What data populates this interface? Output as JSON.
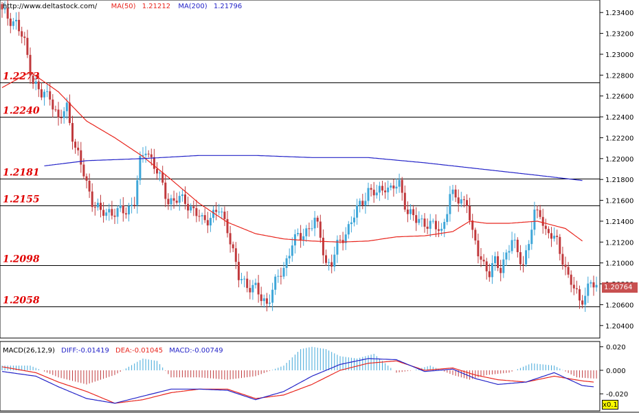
{
  "header": {
    "url": "http://www.deltastock.com/",
    "ma50_label": "MA(50)",
    "ma50_value": "1.21212",
    "ma200_label": "MA(200)",
    "ma200_value": "1.21796"
  },
  "macd_header": {
    "title": "MACD(26,12,9)",
    "diff": "DIFF:-0.01419",
    "dea": "DEA:-0.01045",
    "macd": "MACD:-0.00749"
  },
  "colors": {
    "up": "#3ea6d8",
    "down": "#c0393c",
    "ma50": "#e8241c",
    "ma200": "#2323c8",
    "level_text": "#e00000",
    "price_tag": "#c85050",
    "zoom_tag": "#ffff00"
  },
  "zoom_label": "x0.1",
  "chart_data": [
    {
      "type": "candlestick",
      "title": "",
      "ylim": [
        1.2028,
        1.2352
      ],
      "y_ticks": [
        "1.23400",
        "1.23200",
        "1.23000",
        "1.22800",
        "1.22600",
        "1.22400",
        "1.22200",
        "1.22000",
        "1.21800",
        "1.21600",
        "1.21400",
        "1.21200",
        "1.21000",
        "1.20800",
        "1.20600",
        "1.20400"
      ],
      "current_price": "1.20764",
      "levels": [
        {
          "label": "1.2273",
          "value": 1.2273
        },
        {
          "label": "1.2240",
          "value": 1.224
        },
        {
          "label": "1.2181",
          "value": 1.2181
        },
        {
          "label": "1.2155",
          "value": 1.2155
        },
        {
          "label": "1.2098",
          "value": 1.2098
        },
        {
          "label": "1.2058",
          "value": 1.2058
        }
      ],
      "series_anchor_closes": [
        [
          0,
          1.234
        ],
        [
          5,
          1.233
        ],
        [
          8,
          1.231
        ],
        [
          11,
          1.2275
        ],
        [
          14,
          1.226
        ],
        [
          17,
          1.2262
        ],
        [
          20,
          1.2235
        ],
        [
          23,
          1.225
        ],
        [
          26,
          1.221
        ],
        [
          29,
          1.2185
        ],
        [
          32,
          1.216
        ],
        [
          35,
          1.2147
        ],
        [
          38,
          1.215
        ],
        [
          41,
          1.2148
        ],
        [
          44,
          1.215
        ],
        [
          47,
          1.216
        ],
        [
          49,
          1.2195
        ],
        [
          51,
          1.221
        ],
        [
          53,
          1.22
        ],
        [
          56,
          1.218
        ],
        [
          59,
          1.216
        ],
        [
          62,
          1.216
        ],
        [
          65,
          1.216
        ],
        [
          68,
          1.215
        ],
        [
          71,
          1.214
        ],
        [
          74,
          1.2145
        ],
        [
          77,
          1.215
        ],
        [
          80,
          1.2135
        ],
        [
          82,
          1.211
        ],
        [
          84,
          1.2085
        ],
        [
          87,
          1.208
        ],
        [
          90,
          1.2075
        ],
        [
          92,
          1.2065
        ],
        [
          94,
          1.2062
        ],
        [
          96,
          1.2075
        ],
        [
          98,
          1.2085
        ],
        [
          100,
          1.2095
        ],
        [
          103,
          1.212
        ],
        [
          106,
          1.2125
        ],
        [
          109,
          1.2135
        ],
        [
          111,
          1.214
        ],
        [
          113,
          1.2125
        ],
        [
          115,
          1.21
        ],
        [
          117,
          1.21
        ],
        [
          119,
          1.2115
        ],
        [
          121,
          1.2125
        ],
        [
          124,
          1.214
        ],
        [
          127,
          1.2155
        ],
        [
          130,
          1.217
        ],
        [
          133,
          1.2165
        ],
        [
          136,
          1.2175
        ],
        [
          138,
          1.217
        ],
        [
          141,
          1.2175
        ],
        [
          144,
          1.215
        ],
        [
          147,
          1.214
        ],
        [
          150,
          1.214
        ],
        [
          153,
          1.2135
        ],
        [
          156,
          1.213
        ],
        [
          159,
          1.2165
        ],
        [
          162,
          1.216
        ],
        [
          165,
          1.216
        ],
        [
          167,
          1.2125
        ],
        [
          169,
          1.211
        ],
        [
          171,
          1.21
        ],
        [
          173,
          1.209
        ],
        [
          175,
          1.21
        ],
        [
          177,
          1.2095
        ],
        [
          179,
          1.211
        ],
        [
          181,
          1.212
        ],
        [
          183,
          1.211
        ],
        [
          185,
          1.21
        ],
        [
          187,
          1.212
        ],
        [
          189,
          1.2145
        ],
        [
          191,
          1.215
        ],
        [
          193,
          1.213
        ],
        [
          195,
          1.2125
        ],
        [
          197,
          1.212
        ],
        [
          199,
          1.2105
        ],
        [
          201,
          1.2085
        ],
        [
          203,
          1.2075
        ],
        [
          205,
          1.2065
        ],
        [
          207,
          1.207
        ],
        [
          209,
          1.208
        ],
        [
          211,
          1.2076
        ]
      ],
      "ma50_anchors": [
        [
          0,
          1.2268
        ],
        [
          10,
          1.2283
        ],
        [
          20,
          1.2264
        ],
        [
          30,
          1.2236
        ],
        [
          40,
          1.222
        ],
        [
          50,
          1.2202
        ],
        [
          60,
          1.218
        ],
        [
          70,
          1.2157
        ],
        [
          80,
          1.2139
        ],
        [
          90,
          1.2128
        ],
        [
          100,
          1.2123
        ],
        [
          110,
          1.2121
        ],
        [
          120,
          1.212
        ],
        [
          130,
          1.2121
        ],
        [
          140,
          1.2125
        ],
        [
          150,
          1.2126
        ],
        [
          160,
          1.213
        ],
        [
          166,
          1.214
        ],
        [
          172,
          1.2138
        ],
        [
          180,
          1.2138
        ],
        [
          190,
          1.214
        ],
        [
          200,
          1.2133
        ],
        [
          206,
          1.2121
        ]
      ],
      "ma200_anchors": [
        [
          15,
          1.2193
        ],
        [
          30,
          1.2198
        ],
        [
          50,
          1.22
        ],
        [
          70,
          1.2203
        ],
        [
          90,
          1.2203
        ],
        [
          110,
          1.2201
        ],
        [
          130,
          1.2201
        ],
        [
          150,
          1.2196
        ],
        [
          170,
          1.219
        ],
        [
          190,
          1.2184
        ],
        [
          206,
          1.2179
        ]
      ]
    },
    {
      "type": "macd",
      "params": "26,12,9",
      "ylim": [
        -0.0345,
        0.0245
      ],
      "y_ticks": [
        "0.020",
        "0.000",
        "-0.020"
      ],
      "diff_anchors": [
        [
          0,
          -0.001
        ],
        [
          12,
          -0.005
        ],
        [
          20,
          -0.014
        ],
        [
          30,
          -0.024
        ],
        [
          40,
          -0.028
        ],
        [
          50,
          -0.022
        ],
        [
          60,
          -0.016
        ],
        [
          70,
          -0.016
        ],
        [
          80,
          -0.017
        ],
        [
          90,
          -0.025
        ],
        [
          100,
          -0.018
        ],
        [
          110,
          -0.005
        ],
        [
          120,
          0.005
        ],
        [
          130,
          0.01
        ],
        [
          140,
          0.009
        ],
        [
          150,
          -0.001
        ],
        [
          160,
          0.001
        ],
        [
          168,
          -0.007
        ],
        [
          176,
          -0.012
        ],
        [
          186,
          -0.01
        ],
        [
          196,
          -0.002
        ],
        [
          206,
          -0.013
        ],
        [
          210,
          -0.014
        ]
      ],
      "dea_anchors": [
        [
          0,
          0.003
        ],
        [
          12,
          -0.002
        ],
        [
          20,
          -0.01
        ],
        [
          30,
          -0.018
        ],
        [
          40,
          -0.028
        ],
        [
          50,
          -0.025
        ],
        [
          60,
          -0.019
        ],
        [
          70,
          -0.016
        ],
        [
          80,
          -0.016
        ],
        [
          90,
          -0.024
        ],
        [
          100,
          -0.021
        ],
        [
          110,
          -0.012
        ],
        [
          120,
          0.0
        ],
        [
          130,
          0.006
        ],
        [
          140,
          0.008
        ],
        [
          150,
          0.0
        ],
        [
          160,
          0.002
        ],
        [
          168,
          -0.004
        ],
        [
          176,
          -0.008
        ],
        [
          186,
          -0.01
        ],
        [
          196,
          -0.005
        ],
        [
          206,
          -0.009
        ],
        [
          210,
          -0.01
        ]
      ],
      "hist_anchors": [
        [
          0,
          0.004
        ],
        [
          10,
          0.004
        ],
        [
          20,
          -0.006
        ],
        [
          30,
          -0.012
        ],
        [
          40,
          -0.004
        ],
        [
          50,
          0.01
        ],
        [
          55,
          0.008
        ],
        [
          60,
          -0.006
        ],
        [
          70,
          -0.006
        ],
        [
          80,
          -0.008
        ],
        [
          90,
          -0.005
        ],
        [
          100,
          0.004
        ],
        [
          106,
          0.018
        ],
        [
          110,
          0.02
        ],
        [
          115,
          0.018
        ],
        [
          120,
          0.012
        ],
        [
          126,
          0.01
        ],
        [
          132,
          0.014
        ],
        [
          140,
          -0.002
        ],
        [
          146,
          0.0
        ],
        [
          152,
          0.004
        ],
        [
          160,
          -0.004
        ],
        [
          166,
          -0.008
        ],
        [
          172,
          -0.004
        ],
        [
          180,
          -0.002
        ],
        [
          188,
          0.006
        ],
        [
          196,
          0.004
        ],
        [
          204,
          -0.006
        ],
        [
          210,
          -0.007
        ]
      ]
    }
  ]
}
